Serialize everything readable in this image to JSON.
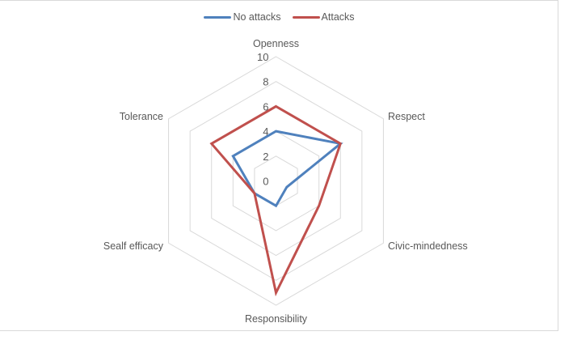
{
  "chart_data": {
    "type": "radar",
    "title": "",
    "categories": [
      "Openness",
      "Respect",
      "Civic-mindedness",
      "Responsibility",
      "Sealf efficacy",
      "Tolerance"
    ],
    "series": [
      {
        "name": "No attacks",
        "color": "#4F81BD",
        "values": [
          4,
          6,
          1,
          2,
          2,
          4
        ]
      },
      {
        "name": "Attacks",
        "color": "#C0504D",
        "values": [
          6,
          6,
          4,
          9,
          2,
          6
        ]
      }
    ],
    "radial_range": [
      0,
      10
    ],
    "ticks": [
      0,
      2,
      4,
      6,
      8,
      10
    ],
    "tick_labels": [
      "0",
      "2",
      "4",
      "6",
      "8",
      "10"
    ],
    "grid": true,
    "legend_position": "top",
    "grid_color": "#d9d9d9"
  }
}
